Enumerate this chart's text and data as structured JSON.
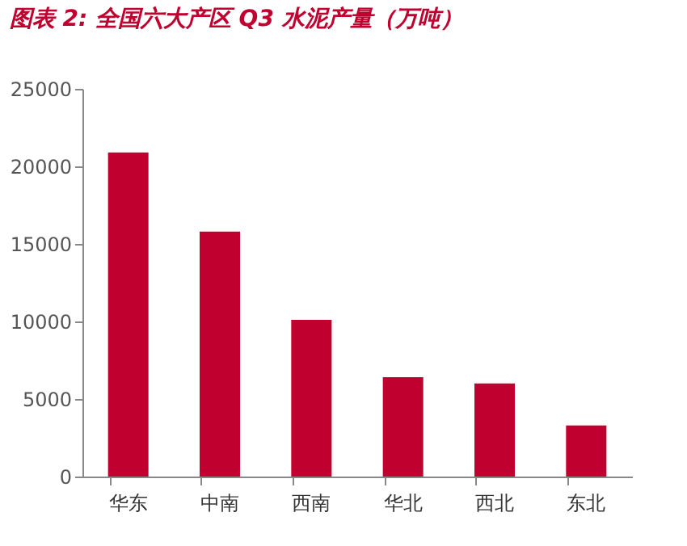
{
  "chart_data": {
    "type": "bar",
    "title": "图表 2:  全国六大产区 Q3 水泥产量（万吨）",
    "categories": [
      "华东",
      "中南",
      "西南",
      "华北",
      "西北",
      "东北"
    ],
    "values": [
      20900,
      15800,
      10100,
      6400,
      6000,
      3300
    ],
    "color": "#c0002f",
    "ylim": [
      0,
      25000
    ],
    "yticks": [
      0,
      5000,
      10000,
      15000,
      20000,
      25000
    ],
    "grid": false
  }
}
